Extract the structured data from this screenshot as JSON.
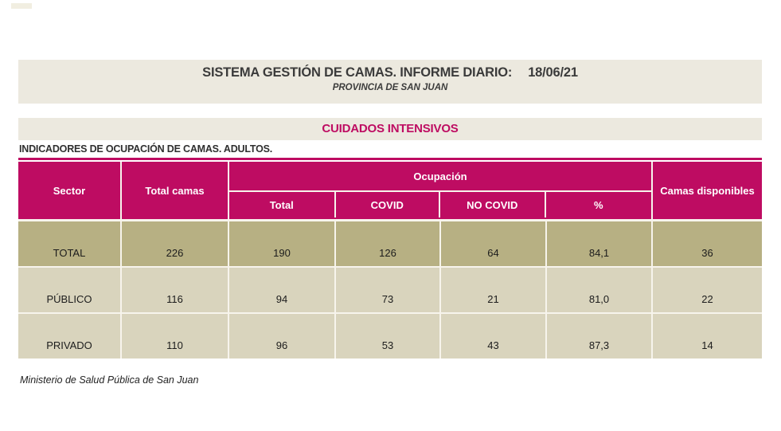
{
  "colors": {
    "accent": "#be0c62",
    "band_background": "#ece9df",
    "row_total_background": "#b7b083",
    "row_sector_background": "#d9d4bd",
    "cell_border": "#f7f4ec",
    "title_text": "#3b3b3b"
  },
  "title_band": {
    "title": "SISTEMA GESTIÓN DE CAMAS. INFORME DIARIO:",
    "date": "18/06/21",
    "subtitle": "PROVINCIA DE SAN JUAN"
  },
  "section_band": {
    "label": "CUIDADOS INTENSIVOS"
  },
  "caption": "INDICADORES DE OCUPACIÓN DE CAMAS. ADULTOS.",
  "table": {
    "header": {
      "sector": "Sector",
      "total_camas": "Total camas",
      "ocupacion_group": "Ocupación",
      "sub": [
        "Total",
        "COVID",
        "NO COVID",
        "%"
      ],
      "camas_disponibles": "Camas disponibles"
    },
    "rows": [
      {
        "sector": "TOTAL",
        "total_camas": "226",
        "ocupacion_total": "190",
        "covid": "126",
        "no_covid": "64",
        "pct": "84,1",
        "disponibles": "36"
      },
      {
        "sector": "PÚBLICO",
        "total_camas": "116",
        "ocupacion_total": "94",
        "covid": "73",
        "no_covid": "21",
        "pct": "81,0",
        "disponibles": "22"
      },
      {
        "sector": "PRIVADO",
        "total_camas": "110",
        "ocupacion_total": "96",
        "covid": "53",
        "no_covid": "43",
        "pct": "87,3",
        "disponibles": "14"
      }
    ]
  },
  "footer": {
    "source": "Ministerio de Salud Pública de San Juan"
  }
}
